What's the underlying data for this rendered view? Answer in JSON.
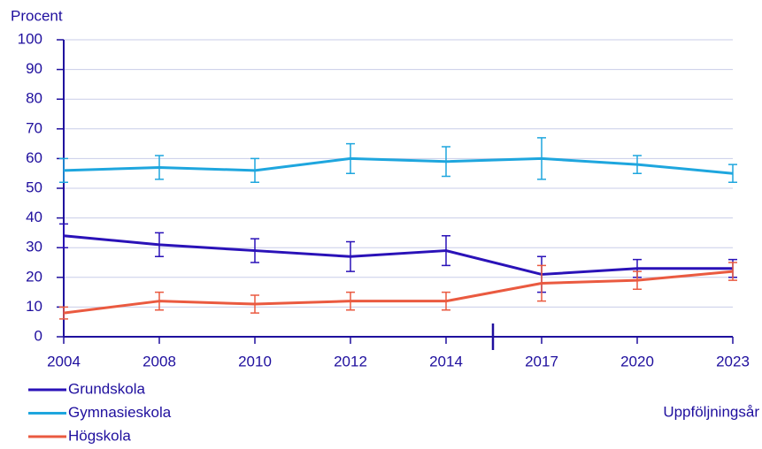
{
  "chart_data": {
    "type": "line",
    "y_label": "Procent",
    "x_label": "Uppföljningsår",
    "categories": [
      "2004",
      "2008",
      "2010",
      "2012",
      "2014",
      "2017",
      "2020",
      "2023"
    ],
    "series": [
      {
        "name": "Grundskola",
        "color": "#2a12b8",
        "values": [
          34,
          31,
          29,
          27,
          29,
          21,
          23,
          23
        ],
        "errors": [
          4,
          4,
          4,
          5,
          5,
          6,
          3,
          3
        ]
      },
      {
        "name": "Gymnasieskola",
        "color": "#1ea6de",
        "values": [
          56,
          57,
          56,
          60,
          59,
          60,
          58,
          55
        ],
        "errors": [
          4,
          4,
          4,
          5,
          5,
          7,
          3,
          3
        ]
      },
      {
        "name": "Högskola",
        "color": "#ea5a40",
        "values": [
          8,
          12,
          11,
          12,
          12,
          18,
          19,
          22
        ],
        "errors": [
          2,
          3,
          3,
          3,
          3,
          6,
          3,
          3
        ]
      }
    ],
    "ylim": [
      0,
      100
    ],
    "yticks": [
      0,
      10,
      20,
      30,
      40,
      50,
      60,
      70,
      80,
      90,
      100
    ],
    "grid": true
  }
}
